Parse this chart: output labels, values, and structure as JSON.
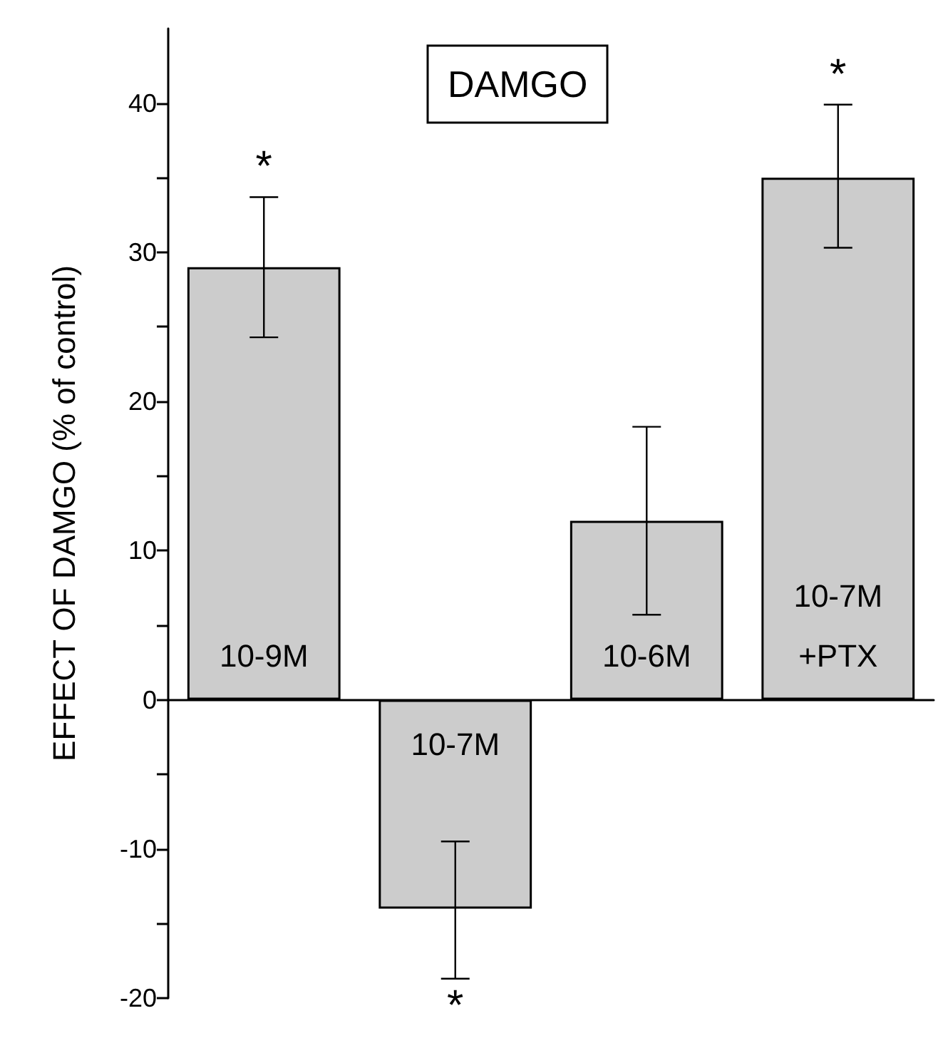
{
  "chart_data": {
    "type": "bar",
    "title": "DAMGO",
    "ylabel": "EFFECT OF DAMGO (% of control)",
    "categories": [
      "10-9M",
      "10-7M",
      "10-6M",
      "10-7M\n+PTX"
    ],
    "values": [
      29,
      -14,
      12,
      35
    ],
    "errors": [
      [
        24.3,
        33.7
      ],
      [
        -18.7,
        -9.5
      ],
      [
        5.7,
        18.3
      ],
      [
        30.3,
        39.9
      ]
    ],
    "color": "#cccccc",
    "ylim": [
      -20,
      45
    ],
    "yticks": [
      -20,
      {
        "value": -15,
        "label": null
      },
      -10,
      {
        "value": -5,
        "label": null
      },
      0,
      {
        "value": 5,
        "label": null
      },
      10,
      {
        "value": 15,
        "label": null
      },
      20,
      {
        "value": 25,
        "label": null
      },
      30,
      {
        "value": 35,
        "label": null
      },
      40
    ],
    "annotations": [
      {
        "text": "*",
        "x": "10-9M",
        "y": 33.7
      },
      {
        "text": "*",
        "x": "10-7M",
        "y": -18.7
      },
      {
        "text": "*",
        "x": "10-7M\n+PTX",
        "y": 39.9
      }
    ],
    "tick_labels": "y",
    "grid": false
  }
}
